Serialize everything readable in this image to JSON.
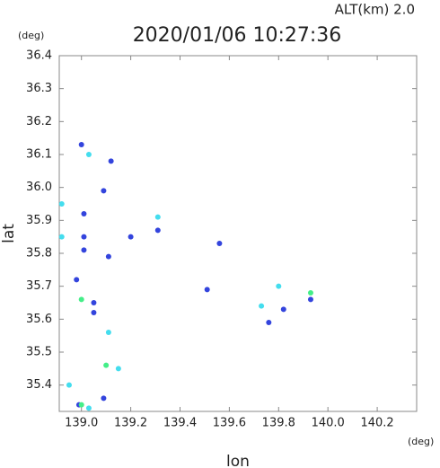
{
  "chart_data": {
    "type": "scatter",
    "title": "2020/01/06 10:27:36",
    "subtitle": "ALT(km) 2.0",
    "x_label": "lon",
    "y_label": "lat",
    "x_unit": "(deg)",
    "y_unit": "(deg)",
    "xlim": [
      138.91,
      140.36
    ],
    "ylim": [
      35.32,
      36.4
    ],
    "xticks": [
      {
        "value": 139.0,
        "label": "139.0"
      },
      139.2,
      139.4,
      139.6,
      139.8,
      {
        "value": 140.0,
        "label": "140.0"
      },
      140.2
    ],
    "yticks": [
      35.4,
      35.5,
      35.6,
      35.7,
      35.8,
      35.9,
      {
        "value": 36.0,
        "label": "36.0"
      },
      36.1,
      36.2,
      36.3,
      36.4
    ],
    "series": [
      {
        "color": "#3344dd",
        "x": [
          139.0,
          139.12,
          139.09,
          139.01,
          139.01,
          139.01,
          139.2,
          139.31,
          139.56,
          139.11,
          138.98,
          139.05,
          139.51,
          139.82,
          139.93,
          139.76,
          139.09,
          138.99,
          139.05
        ],
        "y": [
          36.13,
          36.08,
          35.99,
          35.92,
          35.85,
          35.81,
          35.85,
          35.87,
          35.83,
          35.79,
          35.72,
          35.65,
          35.69,
          35.63,
          35.66,
          35.59,
          35.36,
          35.34,
          35.62
        ]
      },
      {
        "color": "#44ddee",
        "x": [
          139.03,
          138.92,
          138.92,
          139.15,
          139.11,
          138.95,
          139.03,
          139.31,
          139.73,
          139.8
        ],
        "y": [
          36.1,
          35.95,
          35.85,
          35.45,
          35.56,
          35.4,
          35.33,
          35.91,
          35.64,
          35.7
        ]
      },
      {
        "color": "#44ee88",
        "x": [
          139.0,
          139.0,
          139.1,
          139.93
        ],
        "y": [
          35.66,
          35.34,
          35.46,
          35.68
        ]
      }
    ]
  }
}
